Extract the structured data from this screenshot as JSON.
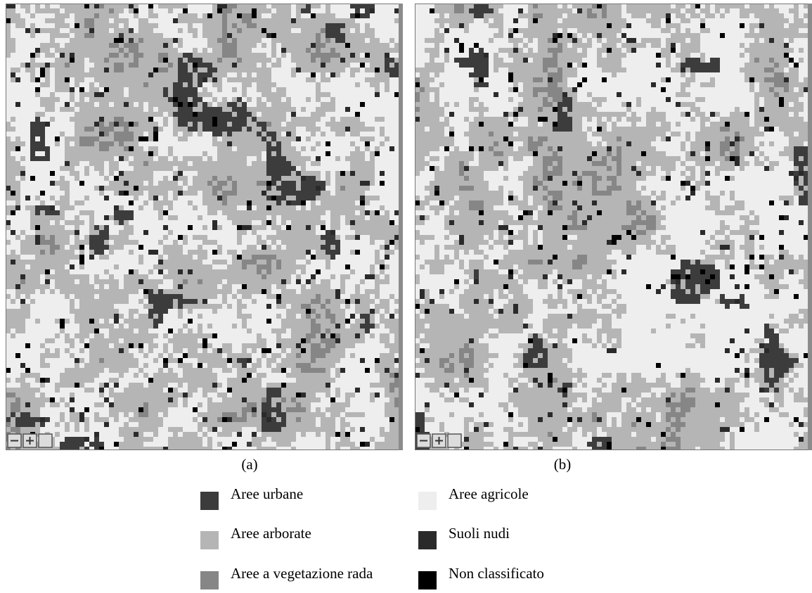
{
  "panels": [
    {
      "caption": "(a)"
    },
    {
      "caption": "(b)"
    }
  ],
  "legend": [
    {
      "label": "Aree urbane",
      "color": "#3c3c3c"
    },
    {
      "label": "Aree agricole",
      "color": "#eeeeee"
    },
    {
      "label": "Aree arborate",
      "color": "#b5b5b5"
    },
    {
      "label": "Suoli nudi",
      "color": "#2a2a2a"
    },
    {
      "label": "Aree a vegetazione rada",
      "color": "#868686"
    },
    {
      "label": "Non classificato",
      "color": "#000000"
    }
  ]
}
